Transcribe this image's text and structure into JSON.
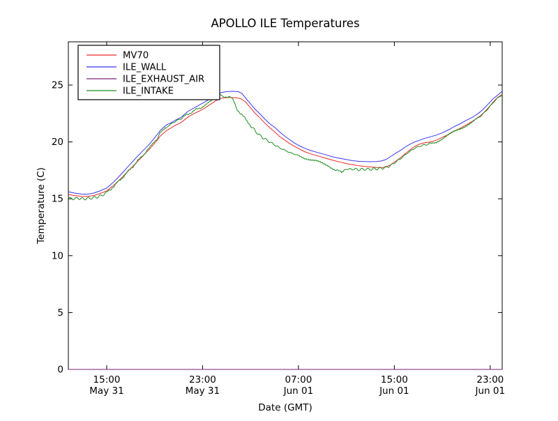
{
  "chart_data": {
    "type": "line",
    "title": "APOLLO ILE Temperatures",
    "xlabel": "Date (GMT)",
    "ylabel": "Temperature (C)",
    "grid": false,
    "legend_position": "upper left",
    "axis_color": "#000000",
    "background": "#ffffff",
    "xlim": [
      11.8,
      48.0
    ],
    "ylim": [
      0,
      28.8
    ],
    "yticks": [
      0,
      5,
      10,
      15,
      20,
      25
    ],
    "xticks": [
      {
        "t": 15,
        "time": "15:00",
        "date": "May 31"
      },
      {
        "t": 23,
        "time": "23:00",
        "date": "May 31"
      },
      {
        "t": 31,
        "time": "07:00",
        "date": "Jun 01"
      },
      {
        "t": 39,
        "time": "15:00",
        "date": "Jun 01"
      },
      {
        "t": 47,
        "time": "23:00",
        "date": "Jun 01"
      }
    ],
    "series": [
      {
        "name": "MV70",
        "color": "#ef2929",
        "noise": 0,
        "points": [
          [
            11.8,
            15.38
          ],
          [
            12.3,
            15.28
          ],
          [
            12.9,
            15.22
          ],
          [
            13.4,
            15.2
          ],
          [
            13.9,
            15.28
          ],
          [
            14.4,
            15.45
          ],
          [
            15.0,
            15.7
          ],
          [
            15.6,
            16.2
          ],
          [
            16.2,
            16.8
          ],
          [
            16.8,
            17.45
          ],
          [
            17.4,
            18.1
          ],
          [
            18.0,
            18.75
          ],
          [
            18.6,
            19.4
          ],
          [
            19.1,
            20.0
          ],
          [
            19.5,
            20.55
          ],
          [
            20.0,
            21.0
          ],
          [
            20.4,
            21.25
          ],
          [
            20.8,
            21.5
          ],
          [
            21.2,
            21.7
          ],
          [
            21.8,
            22.2
          ],
          [
            22.4,
            22.55
          ],
          [
            23.0,
            22.85
          ],
          [
            23.5,
            23.2
          ],
          [
            24.0,
            23.55
          ],
          [
            24.4,
            23.8
          ],
          [
            24.8,
            23.88
          ],
          [
            25.3,
            23.9
          ],
          [
            25.8,
            23.88
          ],
          [
            26.2,
            23.8
          ],
          [
            26.6,
            23.5
          ],
          [
            27.0,
            23.0
          ],
          [
            27.4,
            22.5
          ],
          [
            27.8,
            22.1
          ],
          [
            28.2,
            21.65
          ],
          [
            28.6,
            21.25
          ],
          [
            29.0,
            20.9
          ],
          [
            29.4,
            20.5
          ],
          [
            29.8,
            20.2
          ],
          [
            30.2,
            19.9
          ],
          [
            30.6,
            19.65
          ],
          [
            31.0,
            19.42
          ],
          [
            31.5,
            19.15
          ],
          [
            32.0,
            18.95
          ],
          [
            32.5,
            18.8
          ],
          [
            33.0,
            18.65
          ],
          [
            33.5,
            18.5
          ],
          [
            34.0,
            18.35
          ],
          [
            34.5,
            18.22
          ],
          [
            35.0,
            18.1
          ],
          [
            35.5,
            18.0
          ],
          [
            36.0,
            17.92
          ],
          [
            36.5,
            17.85
          ],
          [
            37.0,
            17.8
          ],
          [
            37.5,
            17.75
          ],
          [
            37.9,
            17.73
          ],
          [
            38.3,
            17.8
          ],
          [
            38.7,
            18.0
          ],
          [
            39.1,
            18.3
          ],
          [
            39.5,
            18.6
          ],
          [
            39.9,
            18.95
          ],
          [
            40.3,
            19.3
          ],
          [
            40.7,
            19.6
          ],
          [
            41.1,
            19.8
          ],
          [
            41.5,
            19.92
          ],
          [
            42.0,
            20.0
          ],
          [
            42.5,
            20.15
          ],
          [
            43.0,
            20.4
          ],
          [
            43.5,
            20.65
          ],
          [
            44.0,
            20.95
          ],
          [
            44.5,
            21.2
          ],
          [
            45.0,
            21.5
          ],
          [
            45.5,
            21.8
          ],
          [
            46.0,
            22.15
          ],
          [
            46.4,
            22.5
          ],
          [
            46.8,
            22.95
          ],
          [
            47.2,
            23.45
          ],
          [
            47.6,
            23.9
          ],
          [
            48.0,
            24.2
          ]
        ]
      },
      {
        "name": "ILE_WALL",
        "color": "#3a35f0",
        "noise": 0,
        "points": [
          [
            11.8,
            15.62
          ],
          [
            12.3,
            15.5
          ],
          [
            12.9,
            15.42
          ],
          [
            13.4,
            15.4
          ],
          [
            13.9,
            15.5
          ],
          [
            14.4,
            15.68
          ],
          [
            15.0,
            15.95
          ],
          [
            15.6,
            16.5
          ],
          [
            16.2,
            17.15
          ],
          [
            16.8,
            17.85
          ],
          [
            17.4,
            18.55
          ],
          [
            18.0,
            19.2
          ],
          [
            18.6,
            19.85
          ],
          [
            19.1,
            20.5
          ],
          [
            19.5,
            21.05
          ],
          [
            20.0,
            21.5
          ],
          [
            20.4,
            21.7
          ],
          [
            20.8,
            21.95
          ],
          [
            21.2,
            22.15
          ],
          [
            21.8,
            22.7
          ],
          [
            22.4,
            23.05
          ],
          [
            23.0,
            23.4
          ],
          [
            23.5,
            23.7
          ],
          [
            24.0,
            23.95
          ],
          [
            24.3,
            24.2
          ],
          [
            24.6,
            24.35
          ],
          [
            25.0,
            24.42
          ],
          [
            25.5,
            24.45
          ],
          [
            26.0,
            24.42
          ],
          [
            26.3,
            24.25
          ],
          [
            26.6,
            23.85
          ],
          [
            27.0,
            23.35
          ],
          [
            27.4,
            22.85
          ],
          [
            27.8,
            22.45
          ],
          [
            28.2,
            22.0
          ],
          [
            28.6,
            21.6
          ],
          [
            29.0,
            21.3
          ],
          [
            29.4,
            20.9
          ],
          [
            29.8,
            20.55
          ],
          [
            30.2,
            20.25
          ],
          [
            30.6,
            19.95
          ],
          [
            31.0,
            19.7
          ],
          [
            31.5,
            19.45
          ],
          [
            32.0,
            19.25
          ],
          [
            32.5,
            19.1
          ],
          [
            33.0,
            18.95
          ],
          [
            33.5,
            18.8
          ],
          [
            34.0,
            18.65
          ],
          [
            34.5,
            18.55
          ],
          [
            35.0,
            18.45
          ],
          [
            35.5,
            18.35
          ],
          [
            36.0,
            18.3
          ],
          [
            36.5,
            18.28
          ],
          [
            37.0,
            18.26
          ],
          [
            37.5,
            18.28
          ],
          [
            37.9,
            18.32
          ],
          [
            38.3,
            18.45
          ],
          [
            38.7,
            18.72
          ],
          [
            39.1,
            19.0
          ],
          [
            39.5,
            19.25
          ],
          [
            39.9,
            19.55
          ],
          [
            40.3,
            19.8
          ],
          [
            40.7,
            20.0
          ],
          [
            41.1,
            20.15
          ],
          [
            41.5,
            20.3
          ],
          [
            42.0,
            20.45
          ],
          [
            42.5,
            20.6
          ],
          [
            43.0,
            20.8
          ],
          [
            43.5,
            21.05
          ],
          [
            44.0,
            21.35
          ],
          [
            44.5,
            21.6
          ],
          [
            45.0,
            21.9
          ],
          [
            45.5,
            22.15
          ],
          [
            46.0,
            22.5
          ],
          [
            46.4,
            22.85
          ],
          [
            46.8,
            23.3
          ],
          [
            47.2,
            23.75
          ],
          [
            47.6,
            24.1
          ],
          [
            48.0,
            24.45
          ]
        ]
      },
      {
        "name": "ILE_EXHAUST_AIR",
        "color": "#7b1e7e",
        "noise": 0,
        "points": [
          [
            11.8,
            0
          ],
          [
            48.0,
            0
          ]
        ]
      },
      {
        "name": "ILE_INTAKE",
        "color": "#1e8c1e",
        "noise": 0.07,
        "points": [
          [
            11.8,
            15.05
          ],
          [
            12.2,
            15.0
          ],
          [
            12.6,
            15.05
          ],
          [
            13.0,
            15.0
          ],
          [
            13.4,
            15.02
          ],
          [
            13.8,
            15.08
          ],
          [
            14.2,
            15.15
          ],
          [
            14.6,
            15.3
          ],
          [
            15.0,
            15.55
          ],
          [
            15.6,
            16.1
          ],
          [
            16.2,
            16.75
          ],
          [
            16.8,
            17.4
          ],
          [
            17.4,
            18.1
          ],
          [
            18.0,
            18.8
          ],
          [
            18.6,
            19.5
          ],
          [
            19.1,
            20.15
          ],
          [
            19.5,
            20.8
          ],
          [
            20.0,
            21.3
          ],
          [
            20.4,
            21.6
          ],
          [
            20.8,
            21.85
          ],
          [
            21.2,
            22.05
          ],
          [
            21.8,
            22.45
          ],
          [
            22.4,
            22.8
          ],
          [
            23.0,
            23.1
          ],
          [
            23.5,
            23.45
          ],
          [
            24.0,
            23.75
          ],
          [
            24.4,
            24.0
          ],
          [
            24.55,
            24.25
          ],
          [
            24.7,
            23.95
          ],
          [
            25.0,
            24.0
          ],
          [
            25.3,
            23.95
          ],
          [
            25.6,
            23.6
          ],
          [
            25.9,
            22.85
          ],
          [
            26.2,
            22.4
          ],
          [
            26.5,
            22.15
          ],
          [
            27.0,
            21.45
          ],
          [
            27.4,
            20.95
          ],
          [
            27.8,
            20.55
          ],
          [
            28.2,
            20.25
          ],
          [
            28.6,
            20.0
          ],
          [
            29.0,
            19.75
          ],
          [
            29.4,
            19.5
          ],
          [
            29.8,
            19.3
          ],
          [
            30.2,
            19.1
          ],
          [
            30.6,
            18.95
          ],
          [
            31.0,
            18.8
          ],
          [
            31.5,
            18.6
          ],
          [
            32.0,
            18.45
          ],
          [
            32.5,
            18.3
          ],
          [
            33.0,
            18.1
          ],
          [
            33.5,
            17.9
          ],
          [
            34.0,
            17.6
          ],
          [
            34.3,
            17.45
          ],
          [
            34.6,
            17.32
          ],
          [
            34.75,
            17.3
          ],
          [
            34.85,
            17.62
          ],
          [
            35.2,
            17.58
          ],
          [
            35.6,
            17.62
          ],
          [
            36.0,
            17.56
          ],
          [
            36.4,
            17.6
          ],
          [
            36.8,
            17.58
          ],
          [
            37.2,
            17.62
          ],
          [
            37.6,
            17.65
          ],
          [
            38.0,
            17.7
          ],
          [
            38.4,
            17.78
          ],
          [
            38.8,
            18.0
          ],
          [
            39.2,
            18.3
          ],
          [
            39.6,
            18.6
          ],
          [
            40.0,
            18.95
          ],
          [
            40.4,
            19.25
          ],
          [
            40.8,
            19.5
          ],
          [
            41.2,
            19.65
          ],
          [
            41.6,
            19.75
          ],
          [
            42.0,
            19.85
          ],
          [
            42.5,
            20.0
          ],
          [
            43.0,
            20.3
          ],
          [
            43.5,
            20.6
          ],
          [
            44.0,
            20.9
          ],
          [
            44.5,
            21.15
          ],
          [
            45.0,
            21.45
          ],
          [
            45.5,
            21.75
          ],
          [
            46.0,
            22.1
          ],
          [
            46.4,
            22.45
          ],
          [
            46.8,
            22.9
          ],
          [
            47.2,
            23.4
          ],
          [
            47.6,
            23.85
          ],
          [
            48.0,
            24.15
          ]
        ]
      }
    ]
  }
}
